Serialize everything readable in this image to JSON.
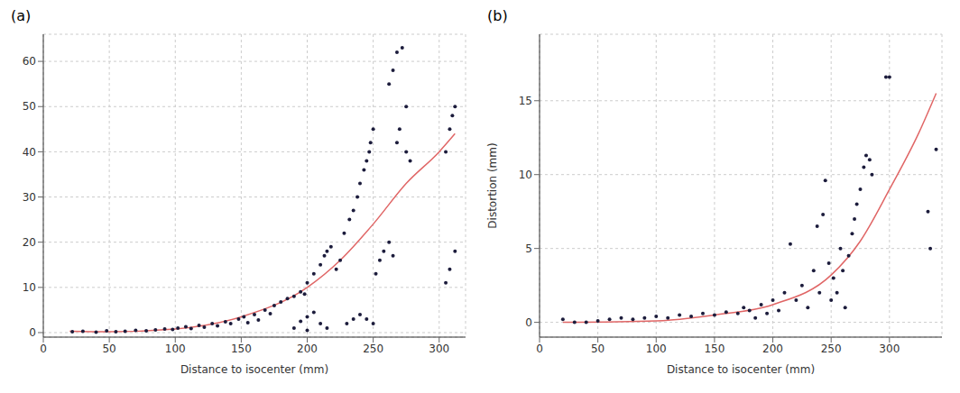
{
  "chart_data": [
    {
      "type": "scatter",
      "title": "(a)",
      "xlabel": "Distance to isocenter (mm)",
      "xlim": [
        0,
        320
      ],
      "xticks": [
        0,
        50,
        100,
        150,
        200,
        250,
        300
      ],
      "ylim": [
        -1,
        66
      ],
      "yticks": [
        0,
        10,
        20,
        30,
        40,
        50,
        60
      ],
      "grid": true,
      "series": [
        {
          "type": "scatter",
          "marker": "circle",
          "color": "#1c1c3c",
          "x": [
            22,
            30,
            40,
            48,
            55,
            62,
            70,
            78,
            85,
            92,
            98,
            102,
            108,
            112,
            118,
            122,
            128,
            132,
            138,
            142,
            148,
            152,
            155,
            160,
            163,
            168,
            172,
            175,
            180,
            185,
            190,
            195,
            198,
            190,
            195,
            200,
            205,
            210,
            215,
            200,
            200,
            205,
            210,
            213,
            215,
            218,
            222,
            225,
            228,
            232,
            235,
            238,
            240,
            243,
            245,
            248,
            250,
            247,
            230,
            235,
            240,
            245,
            250,
            252,
            255,
            258,
            262,
            265,
            262,
            265,
            268,
            272,
            275,
            270,
            268,
            275,
            278,
            305,
            308,
            310,
            312,
            305,
            308,
            312
          ],
          "values": [
            0.2,
            0.3,
            0.1,
            0.4,
            0.2,
            0.3,
            0.5,
            0.4,
            0.6,
            0.8,
            0.7,
            1.0,
            1.3,
            0.9,
            1.6,
            1.2,
            2.0,
            1.5,
            2.4,
            2.0,
            3.0,
            3.5,
            2.2,
            4.0,
            2.8,
            5.0,
            4.2,
            6.0,
            6.8,
            7.5,
            8.0,
            9.0,
            8.5,
            1.0,
            2.5,
            3.5,
            4.5,
            2.0,
            1.0,
            0.5,
            11,
            13,
            15,
            17,
            18,
            19,
            14,
            16,
            22,
            25,
            27,
            30,
            33,
            36,
            38,
            42,
            45,
            40,
            2,
            3,
            4,
            3,
            2,
            13,
            16,
            18,
            20,
            17,
            55,
            58,
            62,
            63,
            50,
            45,
            42,
            40,
            38,
            40,
            45,
            48,
            50,
            11,
            14,
            18
          ]
        },
        {
          "type": "line",
          "line_style": "solid",
          "color": "#e06666",
          "x": [
            20,
            50,
            100,
            150,
            200,
            225,
            250,
            275,
            300,
            312
          ],
          "values": [
            0.3,
            0.2,
            0.8,
            3.5,
            10,
            16,
            24,
            33,
            40,
            44
          ]
        }
      ]
    },
    {
      "type": "scatter",
      "title": "(b)",
      "xlabel": "Distance to isocenter (mm)",
      "ylabel": "Distortion (mm)",
      "xlim": [
        0,
        345
      ],
      "xticks": [
        0,
        50,
        100,
        150,
        200,
        250,
        300
      ],
      "ylim": [
        -1,
        19.5
      ],
      "yticks": [
        0,
        5,
        10,
        15
      ],
      "grid": true,
      "series": [
        {
          "type": "scatter",
          "marker": "circle",
          "color": "#1c1c3c",
          "x": [
            20,
            30,
            40,
            50,
            60,
            70,
            80,
            90,
            100,
            110,
            120,
            130,
            140,
            150,
            160,
            170,
            175,
            180,
            185,
            190,
            195,
            200,
            205,
            210,
            215,
            220,
            225,
            230,
            235,
            238,
            240,
            243,
            245,
            248,
            250,
            252,
            255,
            258,
            260,
            262,
            265,
            268,
            270,
            272,
            275,
            278,
            280,
            283,
            285,
            297,
            300,
            333,
            335,
            340
          ],
          "values": [
            0.2,
            0,
            0,
            0.1,
            0.2,
            0.3,
            0.2,
            0.3,
            0.4,
            0.3,
            0.5,
            0.4,
            0.6,
            0.5,
            0.7,
            0.6,
            1.0,
            0.8,
            0.3,
            1.2,
            0.6,
            1.5,
            0.8,
            2.0,
            5.3,
            1.5,
            2.5,
            1.0,
            3.5,
            6.5,
            2.0,
            7.3,
            9.6,
            4.0,
            1.5,
            3.0,
            2.0,
            5.0,
            3.5,
            1.0,
            4.5,
            6.0,
            7.0,
            8.0,
            9.0,
            10.5,
            11.3,
            11.0,
            10.0,
            16.6,
            16.6,
            7.5,
            5.0,
            11.7
          ]
        },
        {
          "type": "line",
          "line_style": "solid",
          "color": "#e06666",
          "x": [
            20,
            100,
            150,
            200,
            250,
            275,
            300,
            325,
            340
          ],
          "values": [
            0,
            0.1,
            0.5,
            1.2,
            3.2,
            5.5,
            9,
            12.8,
            15.5
          ]
        }
      ]
    }
  ]
}
